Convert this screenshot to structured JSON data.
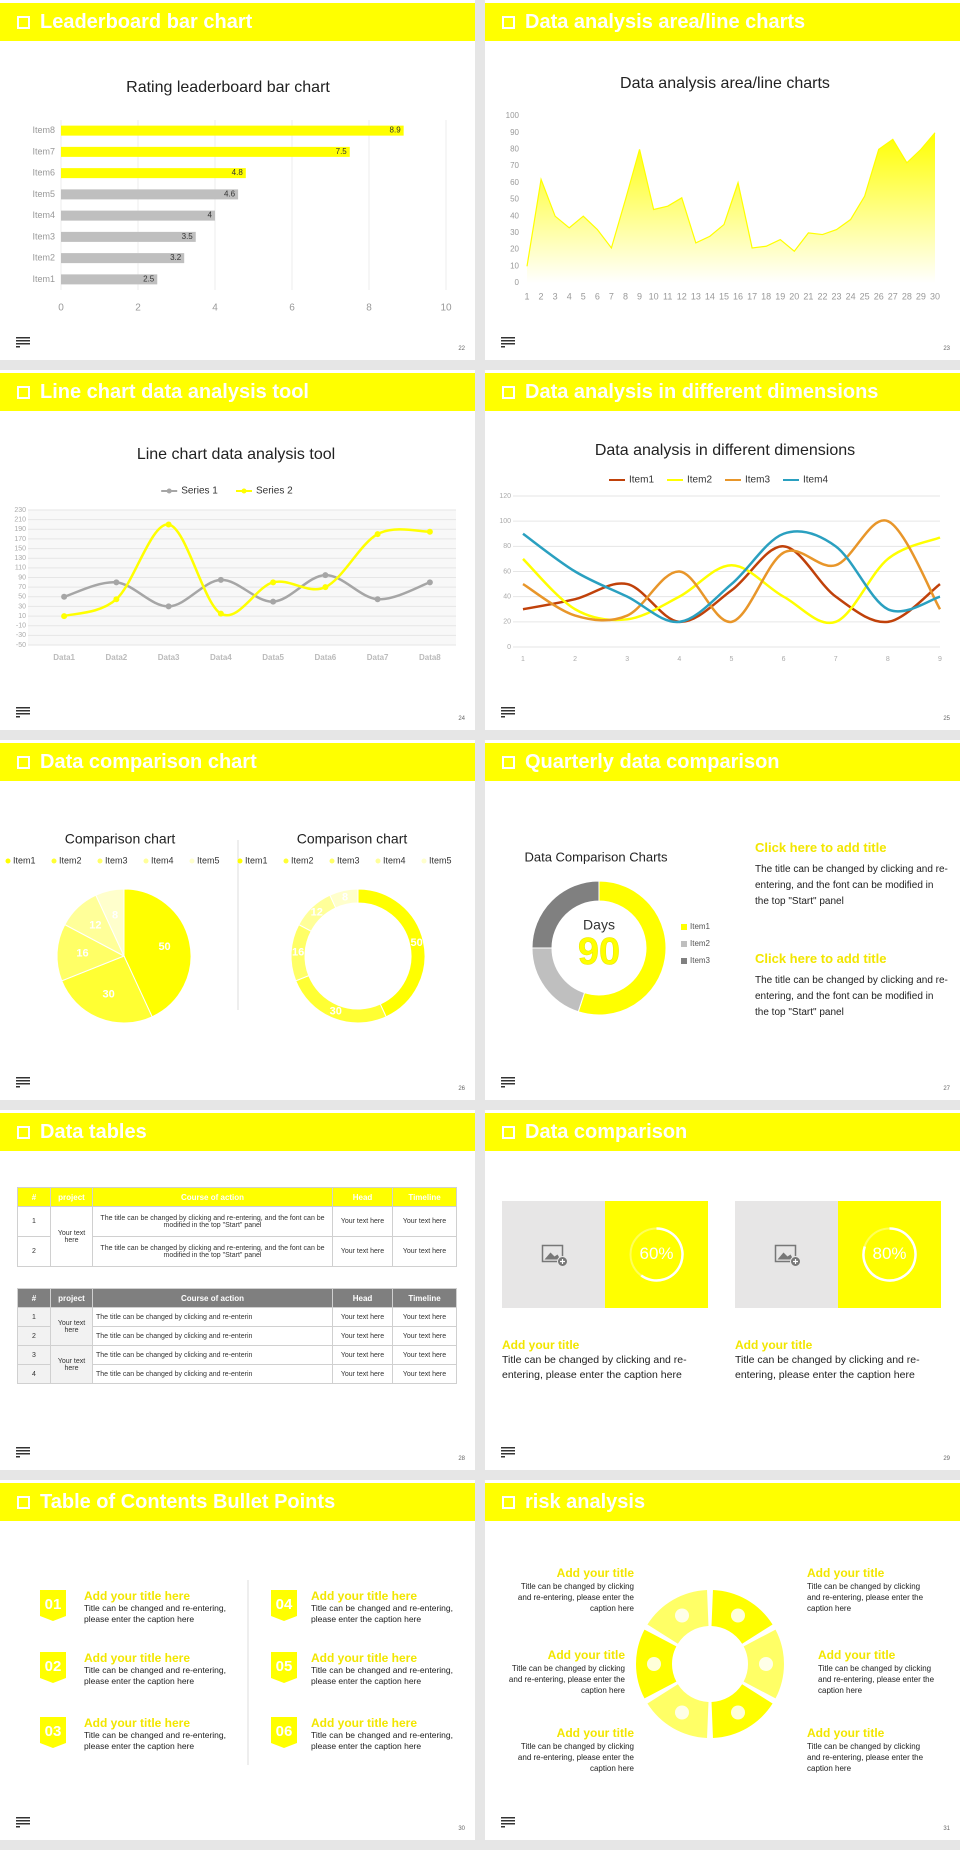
{
  "slides": [
    {
      "title": "Leaderboard bar chart",
      "page": 22,
      "chart": {
        "type": "hbar",
        "title": "Rating leaderboard bar chart",
        "categories": [
          "Item1",
          "Item2",
          "Item3",
          "Item4",
          "Item5",
          "Item6",
          "Item7",
          "Item8"
        ],
        "values": [
          2.5,
          3.2,
          3.5,
          4,
          4.6,
          4.8,
          7.5,
          8.9
        ],
        "colors": [
          "#bfbfbf",
          "#bfbfbf",
          "#bfbfbf",
          "#bfbfbf",
          "#bfbfbf",
          "#ffff00",
          "#ffff00",
          "#ffff00"
        ],
        "xlim": [
          0,
          10
        ],
        "xticks": [
          0,
          2,
          4,
          6,
          8,
          10
        ],
        "grid": true
      }
    },
    {
      "title": "Data analysis area/line charts",
      "page": 23,
      "chart": {
        "type": "area",
        "title": "Data analysis area/line charts",
        "x": [
          1,
          2,
          3,
          4,
          5,
          6,
          7,
          8,
          9,
          10,
          11,
          12,
          13,
          14,
          15,
          16,
          17,
          18,
          19,
          20,
          21,
          22,
          23,
          24,
          25,
          26,
          27,
          28,
          29,
          30
        ],
        "values": [
          10,
          62,
          40,
          33,
          40,
          32,
          21,
          50,
          80,
          44,
          46,
          51,
          24,
          28,
          35,
          60,
          21,
          22,
          26,
          19,
          30,
          29,
          32,
          38,
          52,
          80,
          86,
          72,
          80,
          90
        ],
        "color": "#ffff00",
        "xlim": [
          1,
          30
        ],
        "xticks": [
          1,
          2,
          3,
          4,
          5,
          6,
          7,
          8,
          9,
          10,
          11,
          12,
          13,
          14,
          15,
          16,
          17,
          18,
          19,
          20,
          21,
          22,
          23,
          24,
          25,
          26,
          27,
          28,
          29,
          30
        ],
        "ylim": [
          0,
          100
        ],
        "yticks": [
          0,
          10,
          20,
          30,
          40,
          50,
          60,
          70,
          80,
          90,
          100
        ],
        "grid": false
      }
    },
    {
      "title": "Line chart data analysis tool",
      "page": 24,
      "chart": {
        "type": "smooth-line",
        "title": "Line chart data analysis tool",
        "categories": [
          "Data1",
          "Data2",
          "Data3",
          "Data4",
          "Data5",
          "Data6",
          "Data7",
          "Data8"
        ],
        "series": [
          {
            "name": "Series 1",
            "color": "#a6a6a6",
            "values": [
              50,
              80,
              30,
              85,
              40,
              95,
              45,
              80
            ]
          },
          {
            "name": "Series 2",
            "color": "#ffff00",
            "values": [
              10,
              45,
              200,
              15,
              80,
              70,
              180,
              185
            ]
          }
        ],
        "ylim": [
          -50,
          230
        ],
        "yticks": [
          -50,
          -30,
          -10,
          10,
          30,
          50,
          70,
          90,
          110,
          130,
          150,
          170,
          190,
          210,
          230
        ],
        "grid": true,
        "markers": true,
        "legend": "top"
      }
    },
    {
      "title": "Data analysis in different dimensions",
      "page": 25,
      "chart": {
        "type": "smooth-line",
        "title": "Data analysis in different dimensions",
        "x": [
          1,
          2,
          3,
          4,
          5,
          6,
          7,
          8,
          9
        ],
        "series": [
          {
            "name": "Item1",
            "color": "#c0410a",
            "values": [
              30,
              38,
              50,
              20,
              45,
              80,
              40,
              20,
              50
            ]
          },
          {
            "name": "Item2",
            "color": "#ffff00",
            "values": [
              70,
              30,
              22,
              40,
              65,
              40,
              20,
              70,
              87
            ]
          },
          {
            "name": "Item3",
            "color": "#e8962a",
            "values": [
              50,
              25,
              25,
              60,
              20,
              75,
              65,
              100,
              30
            ]
          },
          {
            "name": "Item4",
            "color": "#2aa0c0",
            "values": [
              90,
              60,
              40,
              20,
              50,
              90,
              80,
              30,
              40
            ]
          }
        ],
        "xlim": [
          1,
          9
        ],
        "xticks": [
          1,
          2,
          3,
          4,
          5,
          6,
          7,
          8,
          9
        ],
        "ylim": [
          0,
          120
        ],
        "yticks": [
          0,
          20,
          40,
          60,
          80,
          100,
          120
        ],
        "grid": true,
        "markers": false,
        "legend": "top"
      }
    },
    {
      "title": "Data comparison chart",
      "page": 26,
      "charts": [
        {
          "type": "pie",
          "title": "Comparison chart",
          "categories": [
            "Item1",
            "Item2",
            "Item3",
            "Item4",
            "Item5"
          ],
          "values": [
            50,
            30,
            16,
            12,
            8
          ],
          "colors": [
            "#ffff00",
            "#ffff33",
            "#ffff66",
            "#ffff99",
            "#ffffcc"
          ],
          "data_labels": true,
          "legend": "top"
        },
        {
          "type": "donut",
          "title": "Comparison chart",
          "categories": [
            "Item1",
            "Item2",
            "Item3",
            "Item4",
            "Item5"
          ],
          "values": [
            50,
            30,
            16,
            12,
            8
          ],
          "colors": [
            "#ffff00",
            "#ffff33",
            "#ffff66",
            "#ffff99",
            "#ffffcc"
          ],
          "data_labels": true,
          "legend": "top"
        }
      ]
    },
    {
      "title": "Quarterly data comparison",
      "page": 27,
      "chart": {
        "type": "donut",
        "title": "Data Comparison Charts",
        "center_label": "Days",
        "center_value": 90,
        "categories": [
          "Item1",
          "Item2",
          "Item3"
        ],
        "values": [
          55,
          20,
          25
        ],
        "colors": [
          "#ffff00",
          "#bfbfbf",
          "#808080"
        ],
        "data_labels": false,
        "legend": "right"
      },
      "notes": [
        {
          "title": "Click here to add title",
          "text": "The title can be changed by clicking and re-entering, and the font can be modified in the top \"Start\" panel"
        },
        {
          "title": "Click here to add title",
          "text": "The title can be changed by clicking and re-entering, and the font can be modified in the top \"Start\" panel"
        }
      ]
    },
    {
      "title": "Data tables",
      "page": 28,
      "tables": [
        {
          "header_color": "#ffff00",
          "header": [
            "#",
            "project",
            "Course of action",
            "Head",
            "Timeline"
          ],
          "groups": [
            {
              "project": "Your text here",
              "rows": [
                [
                  1,
                  "The title can be changed by clicking and re-entering, and the font can be modified in the top \"Start\" panel",
                  "Your text here",
                  "Your text here"
                ],
                [
                  2,
                  "The title can be changed by clicking and re-entering, and the font can be modified in the top \"Start\" panel",
                  "Your text here",
                  "Your text here"
                ]
              ]
            }
          ]
        },
        {
          "header_color": "#7f7f7f",
          "header": [
            "#",
            "project",
            "Course of action",
            "Head",
            "Timeline"
          ],
          "groups": [
            {
              "project": "Your text here",
              "rows": [
                [
                  1,
                  "The title can be changed by clicking and re-enterin",
                  "Your text here",
                  "Your text here"
                ],
                [
                  2,
                  "The title can be changed by clicking and re-enterin",
                  "Your text here",
                  "Your text here"
                ]
              ]
            },
            {
              "project": "Your text here",
              "rows": [
                [
                  3,
                  "The title can be changed by clicking and re-enterin",
                  "Your text here",
                  "Your text here"
                ],
                [
                  4,
                  "The title can be changed by clicking and re-enterin",
                  "Your text here",
                  "Your text here"
                ]
              ]
            }
          ]
        }
      ]
    },
    {
      "title": "Data comparison",
      "page": 29,
      "cards": [
        {
          "value": 60,
          "value_label": "60%",
          "title": "Add your title",
          "text": "Title can be changed by clicking and re-entering, please enter the caption here"
        },
        {
          "value": 80,
          "value_label": "80%",
          "title": "Add your title",
          "text": "Title can be changed by clicking and re-entering, please enter the caption here"
        }
      ]
    },
    {
      "title": "Table of Contents Bullet Points",
      "page": 30,
      "bullets": [
        {
          "number": "01",
          "title": "Add your title here",
          "text": "Title can be changed and re-entering, please enter the caption here"
        },
        {
          "number": "02",
          "title": "Add your title here",
          "text": "Title can be changed and re-entering, please enter the caption here"
        },
        {
          "number": "03",
          "title": "Add your title here",
          "text": "Title can be changed and re-entering, please enter the caption here"
        },
        {
          "number": "04",
          "title": "Add your title here",
          "text": "Title can be changed and re-entering, please enter the caption here"
        },
        {
          "number": "05",
          "title": "Add your title here",
          "text": "Title can be changed and re-entering, please enter the caption here"
        },
        {
          "number": "06",
          "title": "Add your title here",
          "text": "Title can be changed and re-entering, please enter the caption here"
        }
      ]
    },
    {
      "title": "risk analysis",
      "page": 31,
      "risks": [
        {
          "title": "Add your title",
          "text": "Title can be changed by clicking and re-entering, please enter the caption here"
        },
        {
          "title": "Add your title",
          "text": "Title can be changed by clicking and re-entering, please enter the caption here"
        },
        {
          "title": "Add your title",
          "text": "Title can be changed by clicking and re-entering, please enter the caption here"
        },
        {
          "title": "Add your title",
          "text": "Title can be changed by clicking and re-entering, please enter the caption here"
        },
        {
          "title": "Add your title",
          "text": "Title can be changed by clicking and re-entering, please enter the caption here"
        },
        {
          "title": "Add your title",
          "text": "Title can be changed by clicking and re-entering, please enter the caption here"
        }
      ]
    }
  ]
}
